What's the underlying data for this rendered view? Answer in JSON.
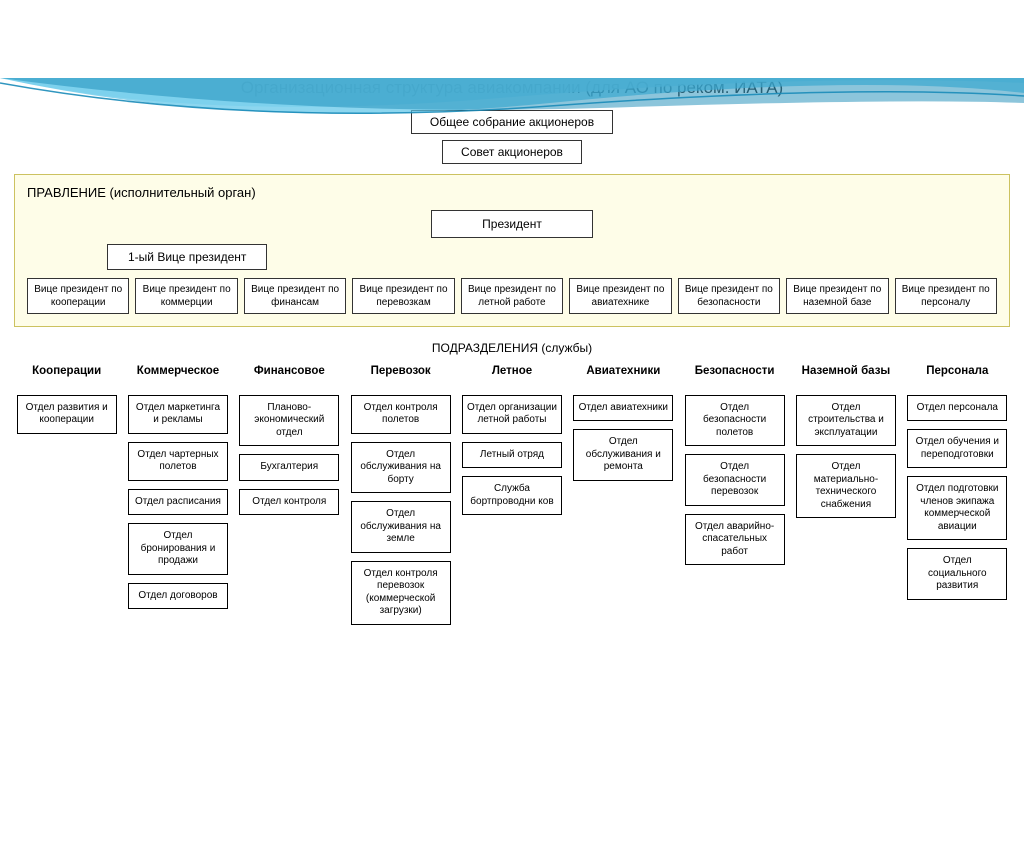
{
  "title": "Организационная структура авиакомпании (для АО по реком. ИАТА)",
  "top": {
    "assembly": "Общее собрание акционеров",
    "council": "Совет акционеров"
  },
  "governance": {
    "panel_title": "ПРАВЛЕНИЕ (исполнительный орган)",
    "president": "Президент",
    "vp1": "1-ый Вице президент",
    "vps": [
      "Вице президент по кооперации",
      "Вице президент по коммерции",
      "Вице президент по финансам",
      "Вице президент по перевозкам",
      "Вице президент по  летной работе",
      "Вице президент по авиатехнике",
      "Вице президент по безопасности",
      "Вице президент по наземной базе",
      "Вице президент по персоналу"
    ]
  },
  "subdivisions_title": "ПОДРАЗДЕЛЕНИЯ (службы)",
  "columns": [
    {
      "header": "Кооперации",
      "depts": [
        "Отдел развития и кооперации"
      ]
    },
    {
      "header": "Коммерческое",
      "depts": [
        "Отдел маркетинга и рекламы",
        "Отдел чартерных полетов",
        "Отдел расписания",
        "Отдел бронирования и продажи",
        "Отдел договоров"
      ]
    },
    {
      "header": "Финансовое",
      "depts": [
        "Планово-экономический отдел",
        "Бухгалтерия",
        "Отдел контроля"
      ]
    },
    {
      "header": "Перевозок",
      "depts": [
        "Отдел контроля полетов",
        "Отдел обслуживания на борту",
        "Отдел обслуживания на земле",
        "Отдел контроля перевозок (коммерческой загрузки)"
      ]
    },
    {
      "header": "Летное",
      "depts": [
        "Отдел организации летной работы",
        "Летный отряд",
        "Служба бортпроводни ков"
      ]
    },
    {
      "header": "Авиатехники",
      "depts": [
        "Отдел авиатехники",
        "Отдел обслуживания и ремонта"
      ]
    },
    {
      "header": "Безопасности",
      "depts": [
        "Отдел безопасности полетов",
        "Отдел безопасности перевозок",
        "Отдел аварийно-спасательных работ"
      ]
    },
    {
      "header": "Наземной базы",
      "depts": [
        "Отдел строительства и эксплуатации",
        "Отдел материально-технического снабжения"
      ]
    },
    {
      "header": "Персонала",
      "depts": [
        "Отдел персонала",
        "Отдел обучения и переподготовки",
        "Отдел подготовки членов экипажа коммерческой авиации",
        "Отдел социального развития"
      ]
    }
  ],
  "colors": {
    "panel_bg": "#fefde8",
    "panel_border": "#ccc260",
    "box_border": "#333333",
    "wave1": "#5bc5e8",
    "wave2": "#1a8bb8",
    "wave3": "#c2e9f5"
  }
}
